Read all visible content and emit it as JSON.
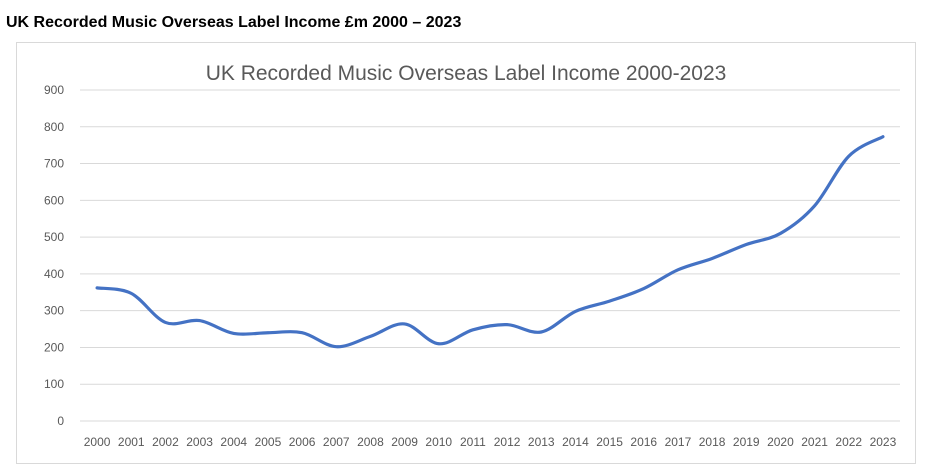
{
  "heading": "UK Recorded Music Overseas Label Income £m 2000 – 2023",
  "chart_data": {
    "type": "line",
    "title": "UK Recorded Music Overseas Label Income 2000-2023",
    "xlabel": "",
    "ylabel": "",
    "x": [
      "2000",
      "2001",
      "2002",
      "2003",
      "2004",
      "2005",
      "2006",
      "2007",
      "2008",
      "2009",
      "2010",
      "2011",
      "2012",
      "2013",
      "2014",
      "2015",
      "2016",
      "2017",
      "2018",
      "2019",
      "2020",
      "2021",
      "2022",
      "2023"
    ],
    "series": [
      {
        "values": [
          362,
          347,
          268,
          273,
          238,
          240,
          240,
          202,
          230,
          264,
          210,
          248,
          262,
          242,
          298,
          326,
          360,
          411,
          442,
          480,
          510,
          585,
          720,
          773
        ]
      }
    ],
    "ylim": [
      0,
      900
    ],
    "yticks": [
      0,
      100,
      200,
      300,
      400,
      500,
      600,
      700,
      800,
      900
    ],
    "grid": true,
    "legend": "none",
    "line_color": "#4472c4",
    "grid_color": "#d9d9d9"
  }
}
